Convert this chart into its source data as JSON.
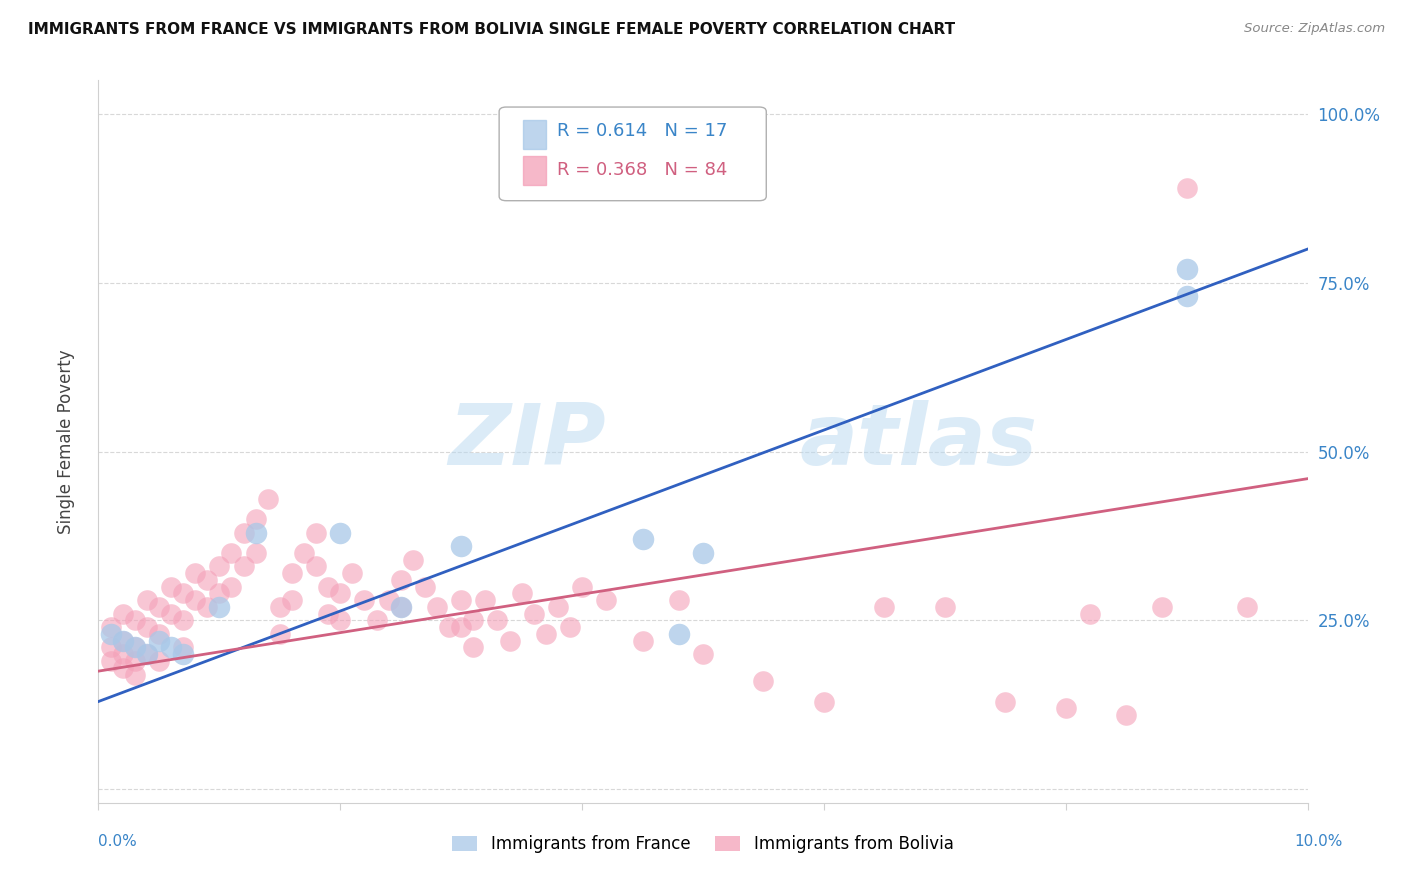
{
  "title": "IMMIGRANTS FROM FRANCE VS IMMIGRANTS FROM BOLIVIA SINGLE FEMALE POVERTY CORRELATION CHART",
  "source": "Source: ZipAtlas.com",
  "ylabel": "Single Female Poverty",
  "xlim": [
    0.0,
    0.1
  ],
  "ylim": [
    -0.02,
    1.05
  ],
  "legend_france_R": "0.614",
  "legend_france_N": "17",
  "legend_bolivia_R": "0.368",
  "legend_bolivia_N": "84",
  "color_france": "#a8c8e8",
  "color_bolivia": "#f4a0b8",
  "color_france_line": "#3060c0",
  "color_bolivia_line": "#d06080",
  "watermark_zip": "ZIP",
  "watermark_atlas": "atlas",
  "france_x": [
    0.001,
    0.002,
    0.003,
    0.004,
    0.005,
    0.006,
    0.007,
    0.01,
    0.013,
    0.02,
    0.025,
    0.03,
    0.045,
    0.05,
    0.09,
    0.09,
    0.048
  ],
  "france_y": [
    0.23,
    0.22,
    0.21,
    0.2,
    0.22,
    0.21,
    0.2,
    0.27,
    0.38,
    0.38,
    0.27,
    0.36,
    0.37,
    0.35,
    0.77,
    0.73,
    0.23
  ],
  "bolivia_x": [
    0.001,
    0.001,
    0.001,
    0.002,
    0.002,
    0.002,
    0.002,
    0.003,
    0.003,
    0.003,
    0.003,
    0.004,
    0.004,
    0.004,
    0.005,
    0.005,
    0.005,
    0.006,
    0.006,
    0.007,
    0.007,
    0.007,
    0.008,
    0.008,
    0.009,
    0.009,
    0.01,
    0.01,
    0.011,
    0.011,
    0.012,
    0.012,
    0.013,
    0.013,
    0.014,
    0.015,
    0.015,
    0.016,
    0.016,
    0.017,
    0.018,
    0.018,
    0.019,
    0.019,
    0.02,
    0.02,
    0.021,
    0.022,
    0.023,
    0.024,
    0.025,
    0.025,
    0.026,
    0.027,
    0.028,
    0.029,
    0.03,
    0.03,
    0.031,
    0.031,
    0.032,
    0.033,
    0.034,
    0.035,
    0.036,
    0.037,
    0.038,
    0.039,
    0.04,
    0.042,
    0.045,
    0.048,
    0.05,
    0.055,
    0.06,
    0.065,
    0.07,
    0.075,
    0.08,
    0.082,
    0.085,
    0.088,
    0.09,
    0.095
  ],
  "bolivia_y": [
    0.24,
    0.21,
    0.19,
    0.26,
    0.22,
    0.2,
    0.18,
    0.25,
    0.21,
    0.19,
    0.17,
    0.28,
    0.24,
    0.2,
    0.27,
    0.23,
    0.19,
    0.3,
    0.26,
    0.29,
    0.25,
    0.21,
    0.32,
    0.28,
    0.31,
    0.27,
    0.33,
    0.29,
    0.35,
    0.3,
    0.38,
    0.33,
    0.4,
    0.35,
    0.43,
    0.27,
    0.23,
    0.32,
    0.28,
    0.35,
    0.38,
    0.33,
    0.3,
    0.26,
    0.29,
    0.25,
    0.32,
    0.28,
    0.25,
    0.28,
    0.31,
    0.27,
    0.34,
    0.3,
    0.27,
    0.24,
    0.28,
    0.24,
    0.25,
    0.21,
    0.28,
    0.25,
    0.22,
    0.29,
    0.26,
    0.23,
    0.27,
    0.24,
    0.3,
    0.28,
    0.22,
    0.28,
    0.2,
    0.16,
    0.13,
    0.27,
    0.27,
    0.13,
    0.12,
    0.26,
    0.11,
    0.27,
    0.89,
    0.27
  ]
}
